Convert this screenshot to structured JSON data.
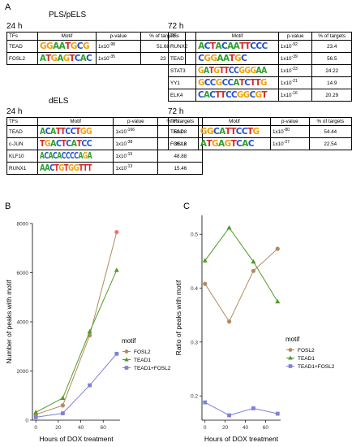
{
  "panels": {
    "A": "A",
    "B": "B",
    "C": "C"
  },
  "section_top_title": "PLS/pELS",
  "section_bottom_title": "dELS",
  "tables": [
    {
      "time": "24 h",
      "headers": [
        "TFs",
        "Motif",
        "p-value",
        "% of targets"
      ],
      "rows": [
        {
          "tf": "TEAD",
          "motif": "GGAATGCG",
          "p_base": "1x10",
          "p_exp": "-98",
          "pct": "51.68"
        },
        {
          "tf": "FOSL2",
          "motif": "ATGAGTCAC",
          "p_base": "1x10",
          "p_exp": "-35",
          "pct": "23"
        }
      ]
    },
    {
      "time": "72 h",
      "headers": [
        "TFs",
        "Motif",
        "p-value",
        "% of targets"
      ],
      "rows": [
        {
          "tf": "RUNX2",
          "motif": "ACTACAATTCCC",
          "p_base": "1x10",
          "p_exp": "-92",
          "pct": "23.4"
        },
        {
          "tf": "TEAD",
          "motif": "CGGAATGC",
          "p_base": "1x10",
          "p_exp": "-39",
          "pct": "56.5"
        },
        {
          "tf": "STAT3",
          "motif": "GATGTTCCGGGAA",
          "p_base": "1x10",
          "p_exp": "-23",
          "pct": "24.22"
        },
        {
          "tf": "YY1",
          "motif": "GCCGCCATCTTG",
          "p_base": "1x10",
          "p_exp": "-21",
          "pct": "14.9"
        },
        {
          "tf": "ELK4",
          "motif": "CACTTCCGGCGT",
          "p_base": "1x10",
          "p_exp": "-16",
          "pct": "20.29"
        }
      ]
    },
    {
      "time": "24 h",
      "headers": [
        "TFs",
        "Motif",
        "p-value",
        "% of targets"
      ],
      "rows": [
        {
          "tf": "TEAD",
          "motif": "ACATTCCTGG",
          "p_base": "1x10",
          "p_exp": "-166",
          "pct": "69.08"
        },
        {
          "tf": "c-JUN",
          "motif": "TGACTCATCC",
          "p_base": "1x10",
          "p_exp": "-38",
          "pct": "36.16"
        },
        {
          "tf": "KLF10",
          "motif": "ACACACCCCAGA",
          "p_base": "1x10",
          "p_exp": "-15",
          "pct": "48.88"
        },
        {
          "tf": "RUNX1",
          "motif": "AACTGTGGTTT",
          "p_base": "1x10",
          "p_exp": "-13",
          "pct": "15.46"
        }
      ]
    },
    {
      "time": "72 h",
      "headers": [
        "TFs",
        "Motif",
        "p-value",
        "% of targets"
      ],
      "rows": [
        {
          "tf": "TEAD",
          "motif": "GGCATTCCTG",
          "p_base": "1x10",
          "p_exp": "-80",
          "pct": "54.44"
        },
        {
          "tf": "FOSL2",
          "motif": "ATGAGTCAC",
          "p_base": "1x10",
          "p_exp": "-27",
          "pct": "22.54"
        }
      ]
    }
  ],
  "colors": {
    "FOSL2": "#b58a5e",
    "TEAD1": "#4e9a26",
    "TEAD1+FOSL2": "#7f80d6",
    "red_point": "#f07470",
    "A": "#2ca02c",
    "C": "#1f4fd1",
    "G": "#f0a000",
    "T": "#d62728"
  },
  "chart_data": [
    {
      "type": "line",
      "xlabel": "Hours of DOX treatment",
      "ylabel": "Number of peaks with motif",
      "legend_title": "motif",
      "legend_position": "right",
      "x_ticks": [
        0,
        20,
        40,
        60
      ],
      "y_ticks": [
        0,
        2000,
        4000,
        6000,
        8000
      ],
      "xlim": [
        -3,
        75
      ],
      "ylim": [
        0,
        8000
      ],
      "grid": false,
      "x": [
        0,
        24,
        48,
        72
      ],
      "series": [
        {
          "name": "FOSL2",
          "values": [
            230,
            600,
            3450,
            7650
          ]
        },
        {
          "name": "TEAD1",
          "values": [
            320,
            900,
            3600,
            6100
          ]
        },
        {
          "name": "TEAD1+FOSL2",
          "values": [
            120,
            280,
            1420,
            2700
          ]
        }
      ]
    },
    {
      "type": "line",
      "xlabel": "Hours of DOX treatment",
      "ylabel": "Ratio of peaks with motif",
      "legend_title": "motif",
      "legend_position": "right",
      "x_ticks": [
        0,
        20,
        40,
        60
      ],
      "y_ticks": [
        0.2,
        0.3,
        0.4,
        0.5
      ],
      "xlim": [
        -3,
        75
      ],
      "ylim": [
        0.155,
        0.535
      ],
      "grid": false,
      "x": [
        0,
        24,
        48,
        72
      ],
      "series": [
        {
          "name": "FOSL2",
          "values": [
            0.408,
            0.338,
            0.432,
            0.473
          ]
        },
        {
          "name": "TEAD1",
          "values": [
            0.451,
            0.512,
            0.449,
            0.375
          ]
        },
        {
          "name": "TEAD1+FOSL2",
          "values": [
            0.188,
            0.164,
            0.177,
            0.167
          ]
        }
      ]
    }
  ]
}
